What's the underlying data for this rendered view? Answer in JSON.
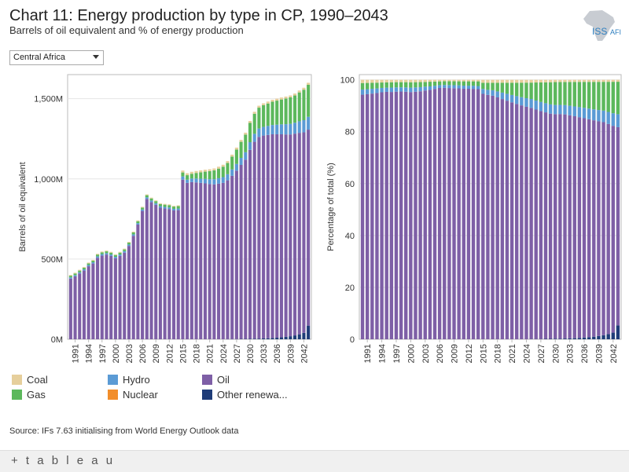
{
  "header": {
    "title": "Chart 11: Energy production by type in CP, 1990–2043",
    "subtitle": "Barrels of oil equivalent and % of energy production"
  },
  "logo": {
    "text_left": "ISS",
    "text_right": "AFI"
  },
  "filter": {
    "selected": "Central Africa"
  },
  "legend_items": [
    {
      "key": "coal",
      "label": "Coal"
    },
    {
      "key": "hydro",
      "label": "Hydro"
    },
    {
      "key": "oil",
      "label": "Oil"
    },
    {
      "key": "gas",
      "label": "Gas"
    },
    {
      "key": "nuclear",
      "label": "Nuclear"
    },
    {
      "key": "other",
      "label": "Other renewa..."
    }
  ],
  "colors": {
    "coal": "#e6cf9c",
    "hydro": "#5b9bd5",
    "oil": "#7e5fa6",
    "gas": "#5cb85c",
    "nuclear": "#f28e2b",
    "other": "#1f3c78",
    "gridline": "#e6e6e6",
    "axis": "#bbbbbb",
    "text": "#333333"
  },
  "source": "Source: IFs 7.63 initialising from World Energy Outlook data",
  "footer": {
    "brand": "+ t a b l e a u"
  },
  "chart_data": [
    {
      "type": "bar",
      "stacked": true,
      "title": "",
      "ylabel": "Barrels of oil equivalent",
      "xlabel": "",
      "ylim": [
        0,
        1650
      ],
      "yticks": [
        0,
        500,
        1000,
        1500
      ],
      "ytick_labels": [
        "0M",
        "500M",
        "1,000M",
        "1,500M"
      ],
      "x": [
        1990,
        1991,
        1992,
        1993,
        1994,
        1995,
        1996,
        1997,
        1998,
        1999,
        2000,
        2001,
        2002,
        2003,
        2004,
        2005,
        2006,
        2007,
        2008,
        2009,
        2010,
        2011,
        2012,
        2013,
        2014,
        2015,
        2016,
        2017,
        2018,
        2019,
        2020,
        2021,
        2022,
        2023,
        2024,
        2025,
        2026,
        2027,
        2028,
        2029,
        2030,
        2031,
        2032,
        2033,
        2034,
        2035,
        2036,
        2037,
        2038,
        2039,
        2040,
        2041,
        2042,
        2043
      ],
      "xtick_labels": [
        "1991",
        "1994",
        "1997",
        "2000",
        "2003",
        "2006",
        "2009",
        "2012",
        "2015",
        "2018",
        "2021",
        "2024",
        "2027",
        "2030",
        "2033",
        "2036",
        "2039",
        "2042"
      ],
      "series": [
        {
          "name": "Other renewables",
          "key": "other",
          "values": [
            0,
            0,
            0,
            0,
            0,
            0,
            0,
            0,
            0,
            0,
            0,
            0,
            0,
            0,
            0,
            0,
            0,
            0,
            0,
            0,
            0,
            0,
            0,
            0,
            0,
            0,
            0,
            0,
            0,
            0,
            0,
            0,
            0,
            0,
            0,
            1,
            1,
            1,
            2,
            2,
            3,
            3,
            4,
            5,
            6,
            8,
            10,
            12,
            15,
            19,
            24,
            31,
            40,
            85
          ]
        },
        {
          "name": "Nuclear",
          "key": "nuclear",
          "values": [
            0,
            0,
            0,
            0,
            0,
            0,
            0,
            0,
            0,
            0,
            0,
            0,
            0,
            0,
            0,
            0,
            0,
            0,
            0,
            0,
            0,
            0,
            0,
            0,
            0,
            0,
            0,
            0,
            0,
            0,
            0,
            0,
            0,
            0,
            0,
            0,
            0,
            0,
            0,
            0,
            0,
            0,
            0,
            0,
            0,
            0,
            0,
            0,
            0,
            0,
            0,
            0,
            0,
            0
          ]
        },
        {
          "name": "Oil",
          "key": "oil",
          "values": [
            378,
            392,
            410,
            428,
            455,
            472,
            508,
            522,
            528,
            520,
            505,
            520,
            540,
            582,
            645,
            715,
            800,
            875,
            855,
            838,
            820,
            815,
            812,
            803,
            805,
            995,
            975,
            980,
            978,
            975,
            972,
            968,
            966,
            970,
            975,
            990,
            1018,
            1050,
            1085,
            1118,
            1178,
            1228,
            1258,
            1265,
            1268,
            1270,
            1268,
            1266,
            1262,
            1258,
            1258,
            1256,
            1250,
            1222
          ]
        },
        {
          "name": "Hydro",
          "key": "hydro",
          "values": [
            8,
            8,
            8,
            8,
            8,
            8,
            9,
            9,
            9,
            9,
            9,
            9,
            9,
            9,
            9,
            9,
            9,
            10,
            10,
            10,
            10,
            10,
            10,
            10,
            10,
            20,
            20,
            22,
            24,
            26,
            28,
            30,
            32,
            34,
            36,
            38,
            40,
            42,
            44,
            46,
            48,
            50,
            52,
            54,
            56,
            58,
            60,
            62,
            64,
            66,
            68,
            72,
            76,
            80
          ]
        },
        {
          "name": "Gas",
          "key": "gas",
          "values": [
            10,
            10,
            10,
            10,
            10,
            10,
            11,
            11,
            11,
            11,
            11,
            11,
            11,
            11,
            12,
            12,
            12,
            13,
            13,
            13,
            13,
            14,
            14,
            14,
            15,
            25,
            28,
            30,
            35,
            40,
            45,
            50,
            55,
            60,
            65,
            70,
            80,
            90,
            100,
            110,
            120,
            125,
            130,
            135,
            140,
            145,
            150,
            155,
            160,
            165,
            170,
            180,
            190,
            200
          ]
        },
        {
          "name": "Coal",
          "key": "coal",
          "values": [
            5,
            5,
            5,
            5,
            5,
            5,
            5,
            5,
            5,
            5,
            5,
            5,
            5,
            5,
            5,
            5,
            5,
            5,
            5,
            5,
            5,
            5,
            5,
            5,
            5,
            12,
            12,
            12,
            12,
            12,
            12,
            12,
            12,
            12,
            12,
            12,
            12,
            12,
            12,
            12,
            12,
            12,
            12,
            12,
            12,
            12,
            12,
            12,
            12,
            12,
            12,
            12,
            12,
            12
          ]
        }
      ]
    },
    {
      "type": "bar",
      "stacked": true,
      "percent": true,
      "title": "",
      "ylabel": "Percentage of total (%)",
      "xlabel": "",
      "ylim": [
        0,
        102
      ],
      "yticks": [
        0,
        20,
        40,
        60,
        80,
        100
      ],
      "ytick_labels": [
        "0",
        "20",
        "40",
        "60",
        "80",
        "100"
      ],
      "x_same_as_left": true,
      "xtick_labels": [
        "1991",
        "1994",
        "1997",
        "2000",
        "2003",
        "2006",
        "2009",
        "2012",
        "2015",
        "2018",
        "2021",
        "2024",
        "2027",
        "2030",
        "2033",
        "2036",
        "2039",
        "2042"
      ],
      "series_keys": [
        "other",
        "nuclear",
        "oil",
        "hydro",
        "gas",
        "coal"
      ]
    }
  ]
}
